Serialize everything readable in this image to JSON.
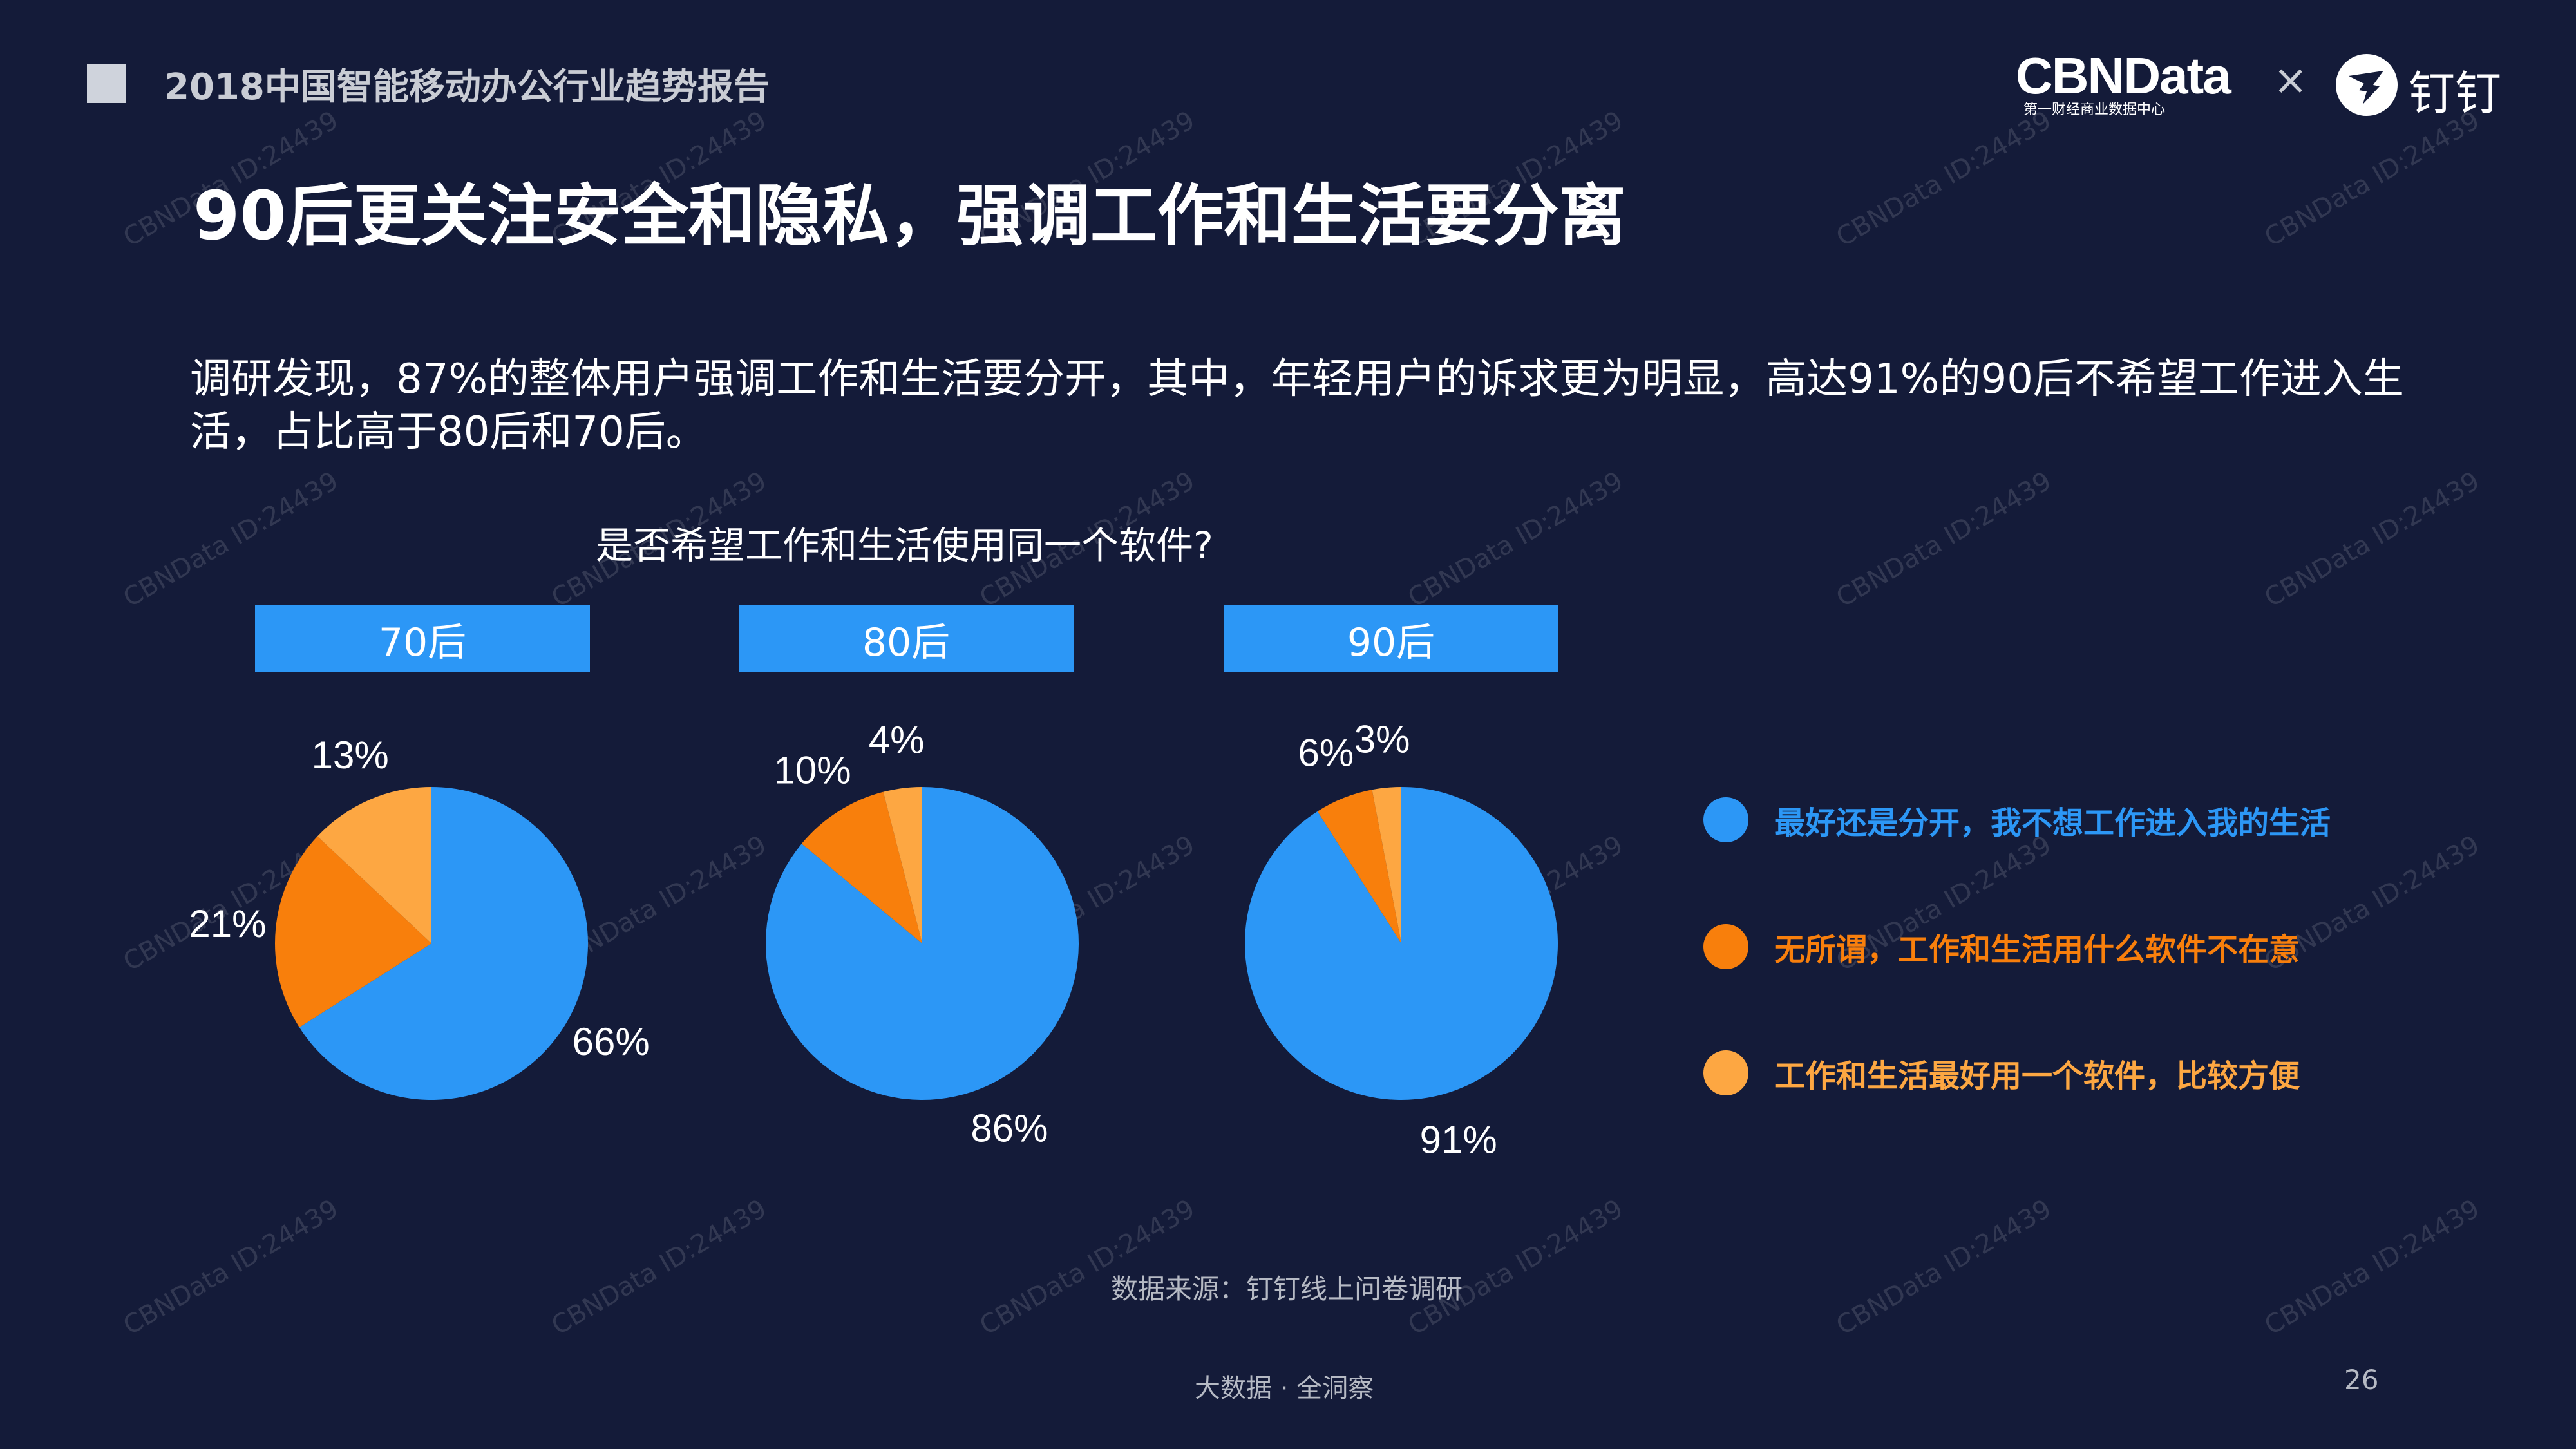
{
  "header": {
    "report_title": "2018中国智能移动办公行业趋势报告",
    "brand_cbndata": "CBNData",
    "brand_cbndata_sub": "第一财经商业数据中心",
    "brand_separator": "×",
    "brand_dingtalk": "钉钉"
  },
  "slide_title": "90后更关注安全和隐私，强调工作和生活要分离",
  "description": "调研发现，87%的整体用户强调工作和生活要分开，其中，年轻用户的诉求更为明显，高达91%的90后不希望工作进入生活，占比高于80后和70后。",
  "chart_data": {
    "type": "pie",
    "title": "是否希望工作和生活使用同一个软件?",
    "categories": [
      "最好还是分开，我不想工作进入我的生活",
      "无所谓，工作和生活用什么软件不在意",
      "工作和生活最好用一个软件，比较方便"
    ],
    "colors": [
      "#2c97f6",
      "#f87f0c",
      "#fda742"
    ],
    "groups": [
      {
        "name": "70后",
        "values": [
          66,
          21,
          13
        ],
        "labels": [
          "66%",
          "21%",
          "13%"
        ]
      },
      {
        "name": "80后",
        "values": [
          86,
          10,
          4
        ],
        "labels": [
          "86%",
          "10%",
          "4%"
        ]
      },
      {
        "name": "90后",
        "values": [
          91,
          6,
          3
        ],
        "labels": [
          "91%",
          "6%",
          "3%"
        ]
      }
    ],
    "legend_position": "right"
  },
  "source": "数据来源：钉钉线上问卷调研",
  "footer_tag": "大数据 · 全洞察",
  "page_number": "26",
  "watermark": "CBNData ID:24439"
}
